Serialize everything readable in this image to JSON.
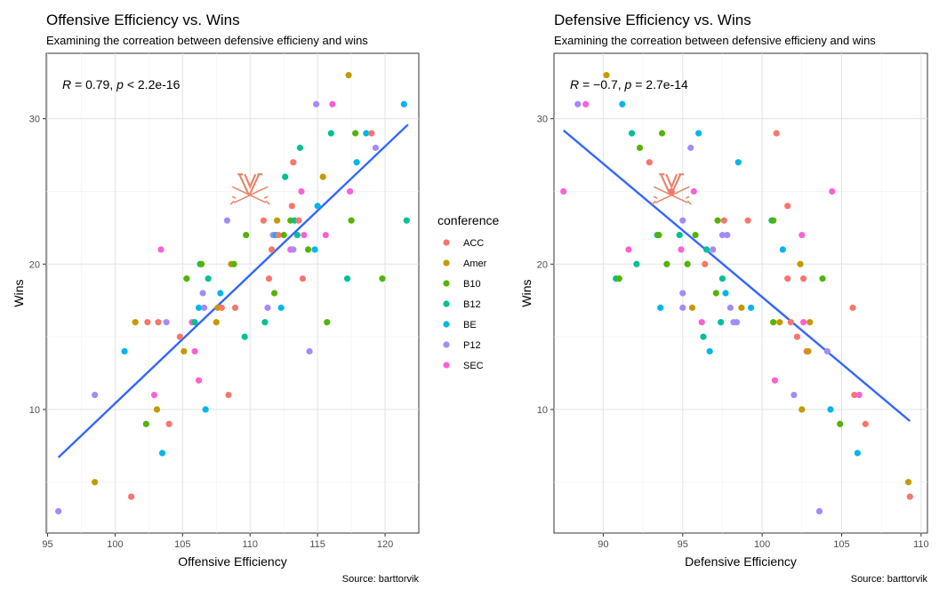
{
  "conference_colors": {
    "ACC": "#F8766D",
    "Amer": "#C49A00",
    "B10": "#53B400",
    "B12": "#00C094",
    "BE": "#00B6EB",
    "P12": "#A58AFF",
    "SEC": "#FB61D7"
  },
  "fit_line_color": "#3366FF",
  "logo_color": "#E57A5E",
  "legend": {
    "title": "conference",
    "entries": [
      "ACC",
      "Amer",
      "B10",
      "B12",
      "BE",
      "P12",
      "SEC"
    ]
  },
  "chart_data": [
    {
      "type": "scatter",
      "title": "Offensive Efficiency vs. Wins",
      "subtitle": "Examining the correation between defensive efficieny and wins",
      "xlabel": "Offensive Efficiency",
      "ylabel": "Wins",
      "xlim": [
        94.9,
        122.5
      ],
      "ylim": [
        1.5,
        34.5
      ],
      "xticks": [
        95,
        100,
        105,
        110,
        115,
        120
      ],
      "yticks": [
        10,
        20,
        30
      ],
      "grid": true,
      "annotation": {
        "R": "0.79",
        "p": "2.2e-16",
        "p_op": "<"
      },
      "fit": {
        "x": [
          95.8,
          121.7
        ],
        "y": [
          6.7,
          29.6
        ]
      },
      "caption": "Source: barttorvik",
      "logo_at": [
        110.0,
        25.2
      ],
      "points": [
        [
          95.8,
          3,
          "P12"
        ],
        [
          98.5,
          5,
          "Amer"
        ],
        [
          98.5,
          11,
          "P12"
        ],
        [
          100.7,
          14,
          "BE"
        ],
        [
          101.2,
          4,
          "ACC"
        ],
        [
          101.5,
          16,
          "Amer"
        ],
        [
          102.4,
          16,
          "ACC"
        ],
        [
          102.3,
          9,
          "B10"
        ],
        [
          102.9,
          11,
          "SEC"
        ],
        [
          103.1,
          10,
          "Amer"
        ],
        [
          103.2,
          16,
          "ACC"
        ],
        [
          103.4,
          21,
          "SEC"
        ],
        [
          103.5,
          7,
          "BE"
        ],
        [
          103.8,
          16,
          "P12"
        ],
        [
          104.0,
          9,
          "ACC"
        ],
        [
          104.8,
          15,
          "ACC"
        ],
        [
          105.1,
          14,
          "Amer"
        ],
        [
          105.3,
          19,
          "B10"
        ],
        [
          105.7,
          16,
          "SEC"
        ],
        [
          105.9,
          16,
          "B12"
        ],
        [
          105.9,
          14,
          "SEC"
        ],
        [
          106.2,
          12,
          "SEC"
        ],
        [
          106.2,
          17,
          "BE"
        ],
        [
          106.3,
          20,
          "B12"
        ],
        [
          106.4,
          20,
          "B10"
        ],
        [
          106.5,
          18,
          "P12"
        ],
        [
          106.6,
          17,
          "P12"
        ],
        [
          106.7,
          10,
          "BE"
        ],
        [
          106.9,
          19,
          "B12"
        ],
        [
          107.5,
          16,
          "Amer"
        ],
        [
          107.6,
          17,
          "Amer"
        ],
        [
          107.8,
          18,
          "BE"
        ],
        [
          107.9,
          17,
          "ACC"
        ],
        [
          108.3,
          23,
          "P12"
        ],
        [
          108.4,
          11,
          "ACC"
        ],
        [
          108.6,
          20,
          "Amer"
        ],
        [
          108.8,
          20,
          "B10"
        ],
        [
          108.9,
          17,
          "ACC"
        ],
        [
          109.6,
          15,
          "B12"
        ],
        [
          109.7,
          22,
          "B10"
        ],
        [
          111.0,
          23,
          "ACC"
        ],
        [
          111.1,
          16,
          "B12"
        ],
        [
          111.3,
          17,
          "P12"
        ],
        [
          111.4,
          19,
          "ACC"
        ],
        [
          111.6,
          21,
          "ACC"
        ],
        [
          111.7,
          22,
          "P12"
        ],
        [
          111.8,
          18,
          "B10"
        ],
        [
          111.9,
          22,
          "BE"
        ],
        [
          112.0,
          23,
          "Amer"
        ],
        [
          112.1,
          22,
          "ACC"
        ],
        [
          112.3,
          17,
          "BE"
        ],
        [
          112.5,
          22,
          "B10"
        ],
        [
          112.6,
          26,
          "B12"
        ],
        [
          113.0,
          23,
          "B10"
        ],
        [
          113.0,
          21,
          "SEC"
        ],
        [
          113.1,
          24,
          "ACC"
        ],
        [
          113.2,
          21,
          "P12"
        ],
        [
          113.2,
          27,
          "ACC"
        ],
        [
          113.3,
          23,
          "B12"
        ],
        [
          113.5,
          22,
          "B12"
        ],
        [
          113.6,
          23,
          "ACC"
        ],
        [
          113.7,
          28,
          "B12"
        ],
        [
          113.8,
          25,
          "SEC"
        ],
        [
          113.9,
          19,
          "ACC"
        ],
        [
          114.0,
          22,
          "SEC"
        ],
        [
          114.3,
          21,
          "B10"
        ],
        [
          114.4,
          14,
          "P12"
        ],
        [
          114.8,
          21,
          "BE"
        ],
        [
          114.9,
          31,
          "P12"
        ],
        [
          115.0,
          24,
          "BE"
        ],
        [
          115.4,
          26,
          "Amer"
        ],
        [
          115.6,
          22,
          "SEC"
        ],
        [
          115.7,
          16,
          "B10"
        ],
        [
          116.0,
          29,
          "B12"
        ],
        [
          116.1,
          31,
          "SEC"
        ],
        [
          117.2,
          19,
          "B12"
        ],
        [
          117.3,
          33,
          "Amer"
        ],
        [
          117.4,
          25,
          "SEC"
        ],
        [
          117.5,
          23,
          "B10"
        ],
        [
          117.8,
          29,
          "B10"
        ],
        [
          117.9,
          27,
          "BE"
        ],
        [
          118.6,
          29,
          "BE"
        ],
        [
          119.0,
          29,
          "ACC"
        ],
        [
          119.3,
          28,
          "P12"
        ],
        [
          119.8,
          19,
          "B10"
        ],
        [
          121.4,
          31,
          "BE"
        ],
        [
          121.6,
          23,
          "B12"
        ]
      ]
    },
    {
      "type": "scatter",
      "title": "Defensive Efficiency vs. Wins",
      "subtitle": "Examining the correation between defensive efficieny and wins",
      "xlabel": "Defensive Efficiency",
      "ylabel": "Wins",
      "xlim": [
        86.9,
        110.4
      ],
      "ylim": [
        1.5,
        34.5
      ],
      "xticks": [
        90,
        95,
        100,
        105,
        110
      ],
      "yticks": [
        10,
        20,
        30
      ],
      "grid": true,
      "annotation": {
        "R": "−0.7",
        "p": "2.7e-14",
        "p_op": "="
      },
      "fit": {
        "x": [
          87.5,
          109.3
        ],
        "y": [
          29.2,
          9.2
        ]
      },
      "caption": "Source: barttorvik",
      "logo_at": [
        94.3,
        25.2
      ],
      "points": [
        [
          87.5,
          25,
          "SEC"
        ],
        [
          88.4,
          31,
          "P12"
        ],
        [
          88.9,
          31,
          "SEC"
        ],
        [
          90.2,
          33,
          "Amer"
        ],
        [
          90.8,
          19,
          "B12"
        ],
        [
          91.0,
          19,
          "B10"
        ],
        [
          91.2,
          31,
          "BE"
        ],
        [
          91.6,
          21,
          "SEC"
        ],
        [
          91.8,
          29,
          "B12"
        ],
        [
          92.1,
          20,
          "B12"
        ],
        [
          92.3,
          28,
          "B10"
        ],
        [
          92.9,
          27,
          "ACC"
        ],
        [
          93.4,
          22,
          "B12"
        ],
        [
          93.5,
          22,
          "B10"
        ],
        [
          93.6,
          17,
          "BE"
        ],
        [
          93.7,
          29,
          "B10"
        ],
        [
          94.0,
          20,
          "B10"
        ],
        [
          94.3,
          25,
          "ACC"
        ],
        [
          94.8,
          22,
          "B12"
        ],
        [
          94.9,
          21,
          "SEC"
        ],
        [
          95.0,
          18,
          "P12"
        ],
        [
          95.0,
          17,
          "P12"
        ],
        [
          95.0,
          23,
          "P12"
        ],
        [
          95.3,
          20,
          "B10"
        ],
        [
          95.5,
          28,
          "P12"
        ],
        [
          95.6,
          17,
          "Amer"
        ],
        [
          95.7,
          25,
          "SEC"
        ],
        [
          95.8,
          22,
          "B10"
        ],
        [
          96.0,
          29,
          "BE"
        ],
        [
          96.2,
          16,
          "SEC"
        ],
        [
          96.3,
          15,
          "B12"
        ],
        [
          96.4,
          20,
          "ACC"
        ],
        [
          96.5,
          21,
          "B12"
        ],
        [
          96.7,
          14,
          "BE"
        ],
        [
          96.9,
          21,
          "P12"
        ],
        [
          97.1,
          18,
          "B10"
        ],
        [
          97.2,
          23,
          "B10"
        ],
        [
          97.4,
          16,
          "B12"
        ],
        [
          97.5,
          19,
          "B12"
        ],
        [
          97.5,
          22,
          "P12"
        ],
        [
          97.6,
          23,
          "ACC"
        ],
        [
          97.7,
          18,
          "BE"
        ],
        [
          97.8,
          22,
          "P12"
        ],
        [
          98.0,
          17,
          "P12"
        ],
        [
          98.2,
          16,
          "P12"
        ],
        [
          98.4,
          16,
          "P12"
        ],
        [
          98.5,
          27,
          "BE"
        ],
        [
          98.7,
          17,
          "Amer"
        ],
        [
          99.1,
          23,
          "ACC"
        ],
        [
          99.3,
          17,
          "BE"
        ],
        [
          100.6,
          23,
          "B12"
        ],
        [
          100.7,
          16,
          "B10"
        ],
        [
          100.7,
          23,
          "B10"
        ],
        [
          100.8,
          12,
          "SEC"
        ],
        [
          100.9,
          29,
          "ACC"
        ],
        [
          101.1,
          16,
          "Amer"
        ],
        [
          101.3,
          21,
          "BE"
        ],
        [
          101.6,
          24,
          "ACC"
        ],
        [
          101.6,
          19,
          "ACC"
        ],
        [
          101.8,
          16,
          "ACC"
        ],
        [
          102.0,
          11,
          "P12"
        ],
        [
          102.2,
          15,
          "ACC"
        ],
        [
          102.4,
          20,
          "Amer"
        ],
        [
          102.5,
          22,
          "SEC"
        ],
        [
          102.5,
          10,
          "Amer"
        ],
        [
          102.6,
          19,
          "ACC"
        ],
        [
          102.6,
          16,
          "SEC"
        ],
        [
          102.8,
          14,
          "ACC"
        ],
        [
          102.9,
          14,
          "Amer"
        ],
        [
          103.0,
          16,
          "Amer"
        ],
        [
          103.6,
          3,
          "P12"
        ],
        [
          103.8,
          19,
          "B10"
        ],
        [
          104.1,
          14,
          "P12"
        ],
        [
          104.3,
          10,
          "BE"
        ],
        [
          104.4,
          25,
          "SEC"
        ],
        [
          104.9,
          9,
          "B10"
        ],
        [
          105.7,
          17,
          "ACC"
        ],
        [
          105.8,
          11,
          "ACC"
        ],
        [
          106.0,
          7,
          "BE"
        ],
        [
          106.1,
          11,
          "SEC"
        ],
        [
          106.5,
          9,
          "ACC"
        ],
        [
          109.2,
          5,
          "Amer"
        ],
        [
          109.3,
          4,
          "ACC"
        ]
      ]
    }
  ]
}
